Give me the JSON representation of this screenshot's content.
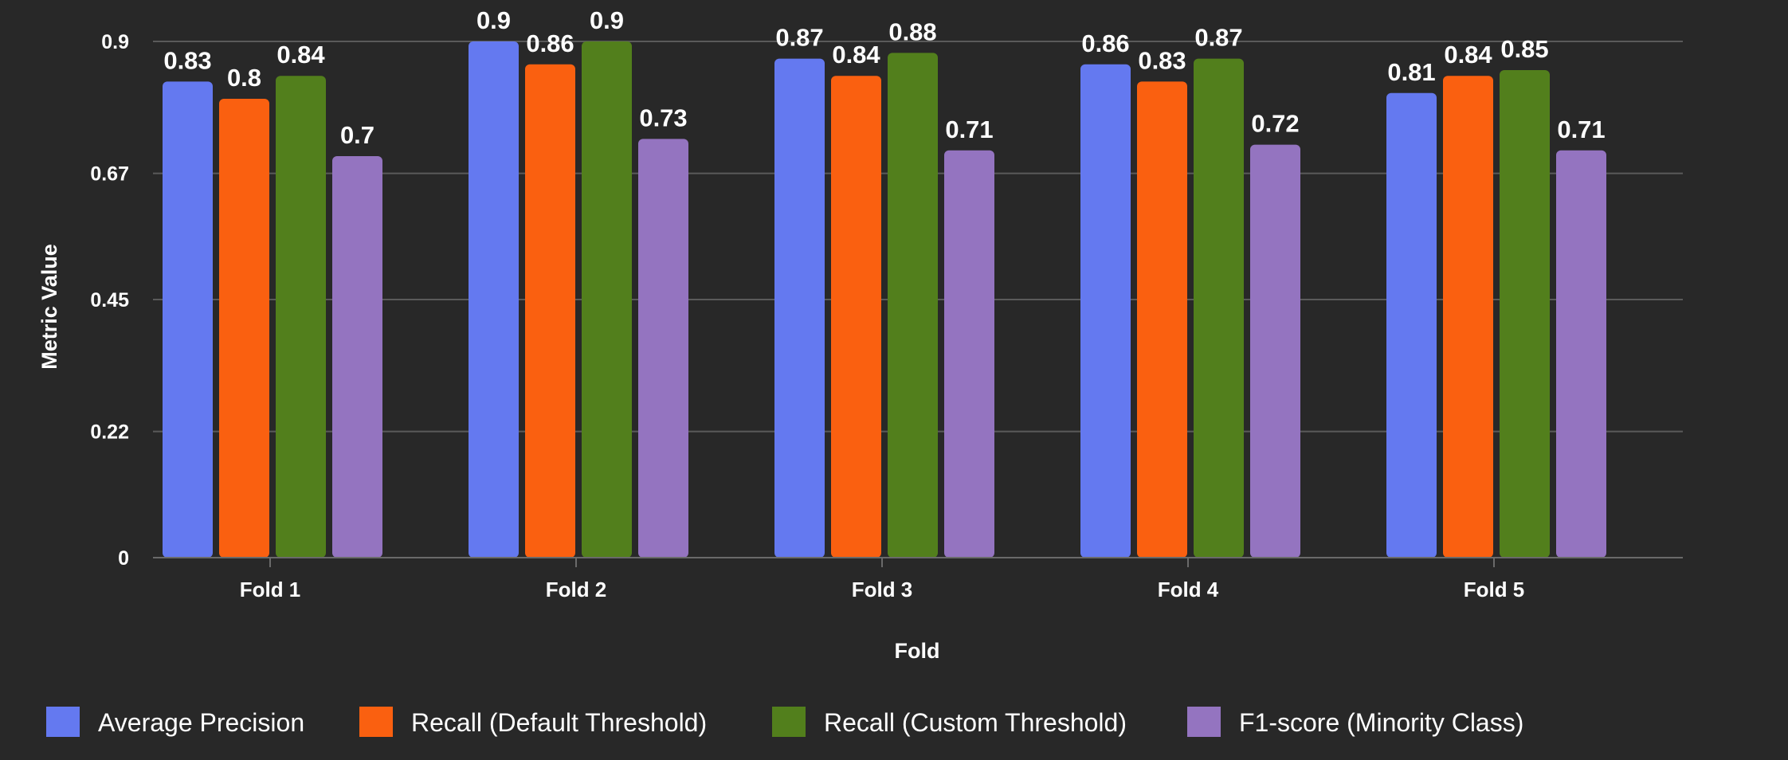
{
  "chart_data": {
    "type": "bar",
    "title": "",
    "xlabel": "Fold",
    "ylabel": "Metric Value",
    "categories": [
      "Fold 1",
      "Fold 2",
      "Fold 3",
      "Fold 4",
      "Fold 5"
    ],
    "y_ticks": [
      "0",
      "0.22",
      "0.45",
      "0.67",
      "0.9"
    ],
    "ylim": [
      0,
      0.9
    ],
    "grid": true,
    "legend_position": "bottom",
    "series": [
      {
        "name": "Average Precision",
        "color": "#6479f0",
        "values": [
          0.83,
          0.9,
          0.87,
          0.86,
          0.81
        ]
      },
      {
        "name": "Recall (Default Threshold)",
        "color": "#fa6010",
        "values": [
          0.8,
          0.86,
          0.84,
          0.83,
          0.84
        ]
      },
      {
        "name": "Recall (Custom Threshold)",
        "color": "#527f1c",
        "values": [
          0.84,
          0.9,
          0.88,
          0.87,
          0.85
        ]
      },
      {
        "name": "F1-score (Minority Class)",
        "color": "#9474c0",
        "values": [
          0.7,
          0.73,
          0.71,
          0.72,
          0.71
        ]
      }
    ]
  }
}
